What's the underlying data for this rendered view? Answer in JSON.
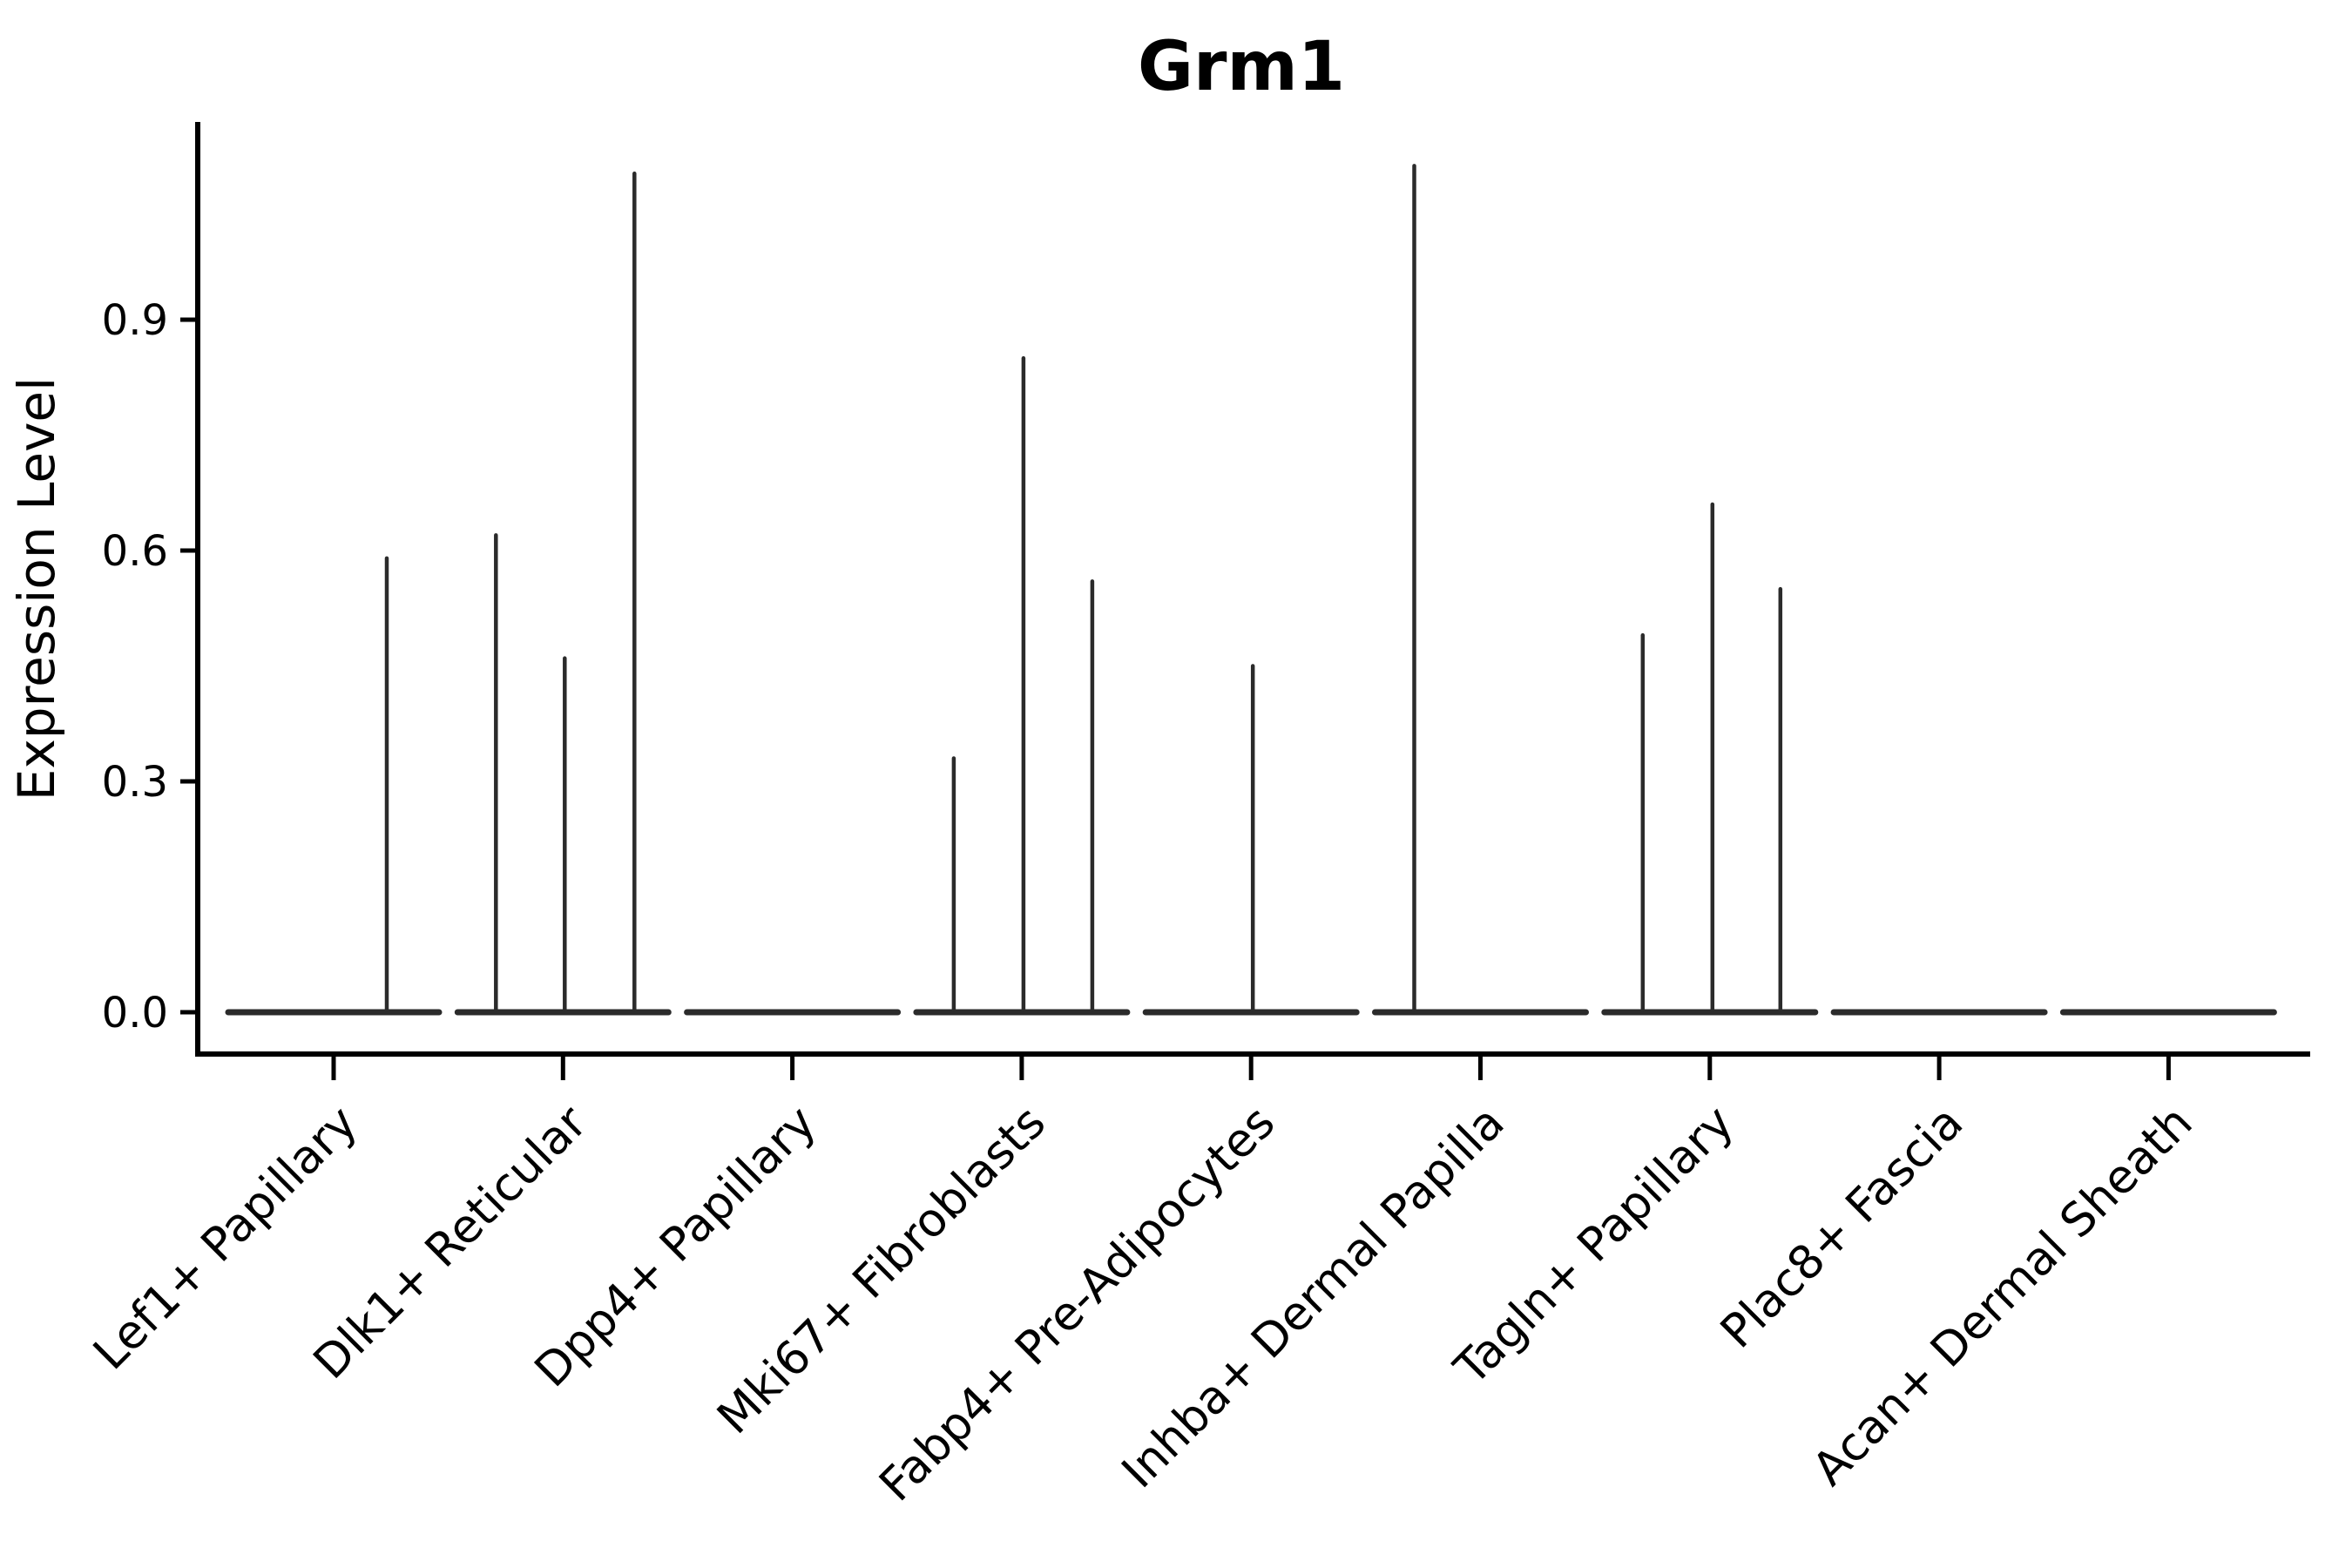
{
  "figure": {
    "title": "Grm1",
    "ylabel": "Expression Level"
  },
  "colors": {
    "background": "#ffffff",
    "axis": "#000000",
    "text": "#000000",
    "violin_stroke": "#2b2b2b"
  },
  "chart_data": {
    "type": "violin",
    "title": "Grm1",
    "xlabel": "",
    "ylabel": "Expression Level",
    "grid": false,
    "legend": "none",
    "ylim": [
      -0.055,
      1.16
    ],
    "ytick_values": [
      0.0,
      0.3,
      0.6,
      0.9
    ],
    "ytick_labels": [
      "0.0",
      "0.3",
      "0.6",
      "0.9"
    ],
    "x_label_rotation_deg": 45,
    "categories": [
      "Lef1+ Papillary",
      "Dlk1+ Reticular",
      "Dpp4+ Papillary",
      "Mki67+ Fibroblasts",
      "Fabp4+ Pre-Adipocytes",
      "Inhba+ Dermal Papilla",
      "Tagln+ Papillary",
      "Plac8+ Fascia",
      "Acan+ Dermal Sheath"
    ],
    "violins": [
      {
        "category": "Lef1+ Papillary",
        "baseline_value": 0.0,
        "needles": [
          {
            "dx": 61,
            "value": 0.59
          }
        ]
      },
      {
        "category": "Dlk1+ Reticular",
        "baseline_value": 0.0,
        "needles": [
          {
            "dx": -77,
            "value": 0.62
          },
          {
            "dx": 2,
            "value": 0.46
          },
          {
            "dx": 82,
            "value": 1.09
          }
        ]
      },
      {
        "category": "Dpp4+ Papillary",
        "baseline_value": 0.0,
        "needles": []
      },
      {
        "category": "Mki67+ Fibroblasts",
        "baseline_value": 0.0,
        "needles": [
          {
            "dx": -78,
            "value": 0.33
          },
          {
            "dx": 2,
            "value": 0.85
          },
          {
            "dx": 81,
            "value": 0.56
          }
        ]
      },
      {
        "category": "Fabp4+ Pre-Adipocytes",
        "baseline_value": 0.0,
        "needles": [
          {
            "dx": 2,
            "value": 0.45
          }
        ]
      },
      {
        "category": "Inhba+ Dermal Papilla",
        "baseline_value": 0.0,
        "needles": [
          {
            "dx": -76,
            "value": 1.1
          }
        ]
      },
      {
        "category": "Tagln+ Papillary",
        "baseline_value": 0.0,
        "needles": [
          {
            "dx": -77,
            "value": 0.49
          },
          {
            "dx": 3,
            "value": 0.66
          },
          {
            "dx": 81,
            "value": 0.55
          }
        ]
      },
      {
        "category": "Plac8+ Fascia",
        "baseline_value": 0.0,
        "needles": []
      },
      {
        "category": "Acan+ Dermal Sheath",
        "baseline_value": 0.0,
        "needles": []
      }
    ]
  }
}
